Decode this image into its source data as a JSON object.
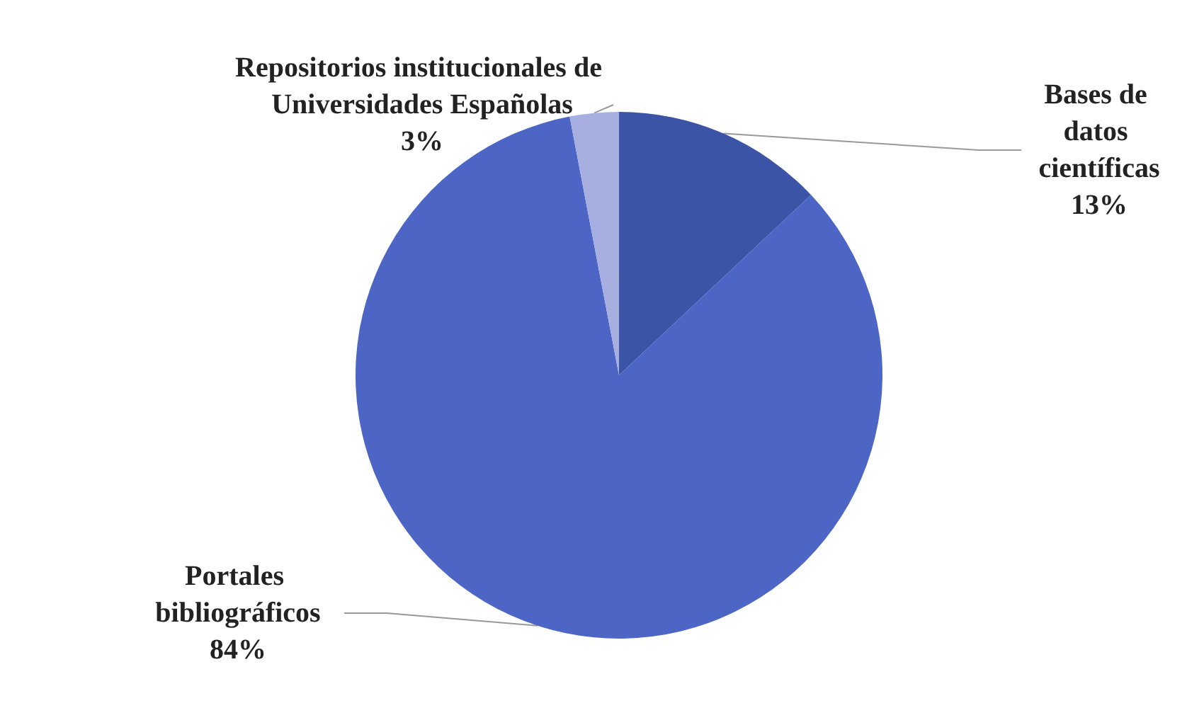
{
  "chart_data": {
    "type": "pie",
    "categories": [
      "Bases de datos científicas",
      "Portales bibliográficos",
      "Repositorios institucionales de Universidades Españolas"
    ],
    "values": [
      13,
      84,
      3
    ],
    "colors": [
      "#3c54a5",
      "#4d66c6",
      "#a6afe0"
    ],
    "value_labels": [
      "13%",
      "84%",
      "3%"
    ],
    "legend": false
  }
}
